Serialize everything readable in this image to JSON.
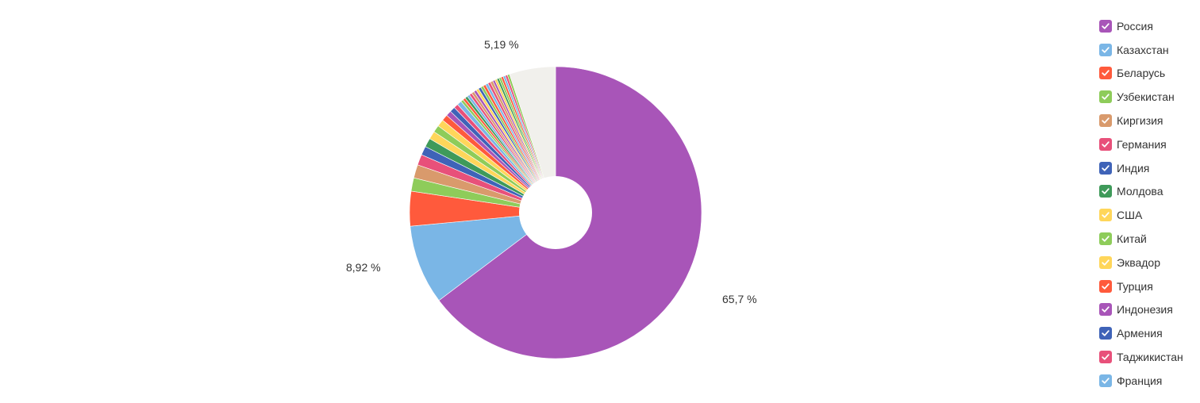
{
  "chart_data": {
    "type": "pie",
    "title": "",
    "donut": true,
    "labels_shown": [
      "65,7 %",
      "8,92 %",
      "5,19 %"
    ],
    "slices": [
      {
        "name": "Россия",
        "value": 65.7,
        "color": "#A855B8"
      },
      {
        "name": "Казахстан",
        "value": 8.92,
        "color": "#7AB6E6"
      },
      {
        "name": "Беларусь",
        "value": 3.9,
        "color": "#FF5A3C"
      },
      {
        "name": "Узбекистан",
        "value": 1.5,
        "color": "#8ECC5A"
      },
      {
        "name": "Киргизия",
        "value": 1.5,
        "color": "#D99A6C"
      },
      {
        "name": "Германия",
        "value": 1.2,
        "color": "#E8507A"
      },
      {
        "name": "Индия",
        "value": 1.0,
        "color": "#3F63B8"
      },
      {
        "name": "Молдова",
        "value": 1.0,
        "color": "#3F9A5A"
      },
      {
        "name": "США",
        "value": 0.9,
        "color": "#FFD65A"
      },
      {
        "name": "Китай",
        "value": 0.8,
        "color": "#8ECC5A"
      },
      {
        "name": "Эквадор",
        "value": 0.8,
        "color": "#FFD65A"
      },
      {
        "name": "Турция",
        "value": 0.7,
        "color": "#FF5A3C"
      },
      {
        "name": "Индонезия",
        "value": 0.6,
        "color": "#A855B8"
      },
      {
        "name": "Армения",
        "value": 0.6,
        "color": "#3F63B8"
      },
      {
        "name": "Таджикистан",
        "value": 0.5,
        "color": "#E8507A"
      },
      {
        "name": "Франция",
        "value": 0.5,
        "color": "#7AB6E6"
      }
    ],
    "extra_small_slices": [
      0.3,
      0.3,
      0.3,
      0.3,
      0.3,
      0.3,
      0.3,
      0.3,
      0.3,
      0.3,
      0.3,
      0.3,
      0.3,
      0.3,
      0.25,
      0.25,
      0.25,
      0.25,
      0.25,
      0.25,
      0.25,
      0.25
    ],
    "extra_colors": [
      "#8ECC5A",
      "#FF5A3C",
      "#3F9A5A",
      "#7AB6E6",
      "#E8507A",
      "#D99A6C",
      "#A855B8",
      "#FFD65A",
      "#3F63B8",
      "#8ECC5A",
      "#FF5A3C",
      "#7AB6E6",
      "#E8507A",
      "#D99A6C",
      "#A855B8",
      "#FFD65A",
      "#3F9A5A",
      "#8ECC5A",
      "#FF5A3C",
      "#7AB6E6",
      "#E8507A",
      "#8ECC5A"
    ],
    "other": {
      "value": 5.19,
      "color": "#F1F0EC"
    },
    "legend_position": "right"
  }
}
